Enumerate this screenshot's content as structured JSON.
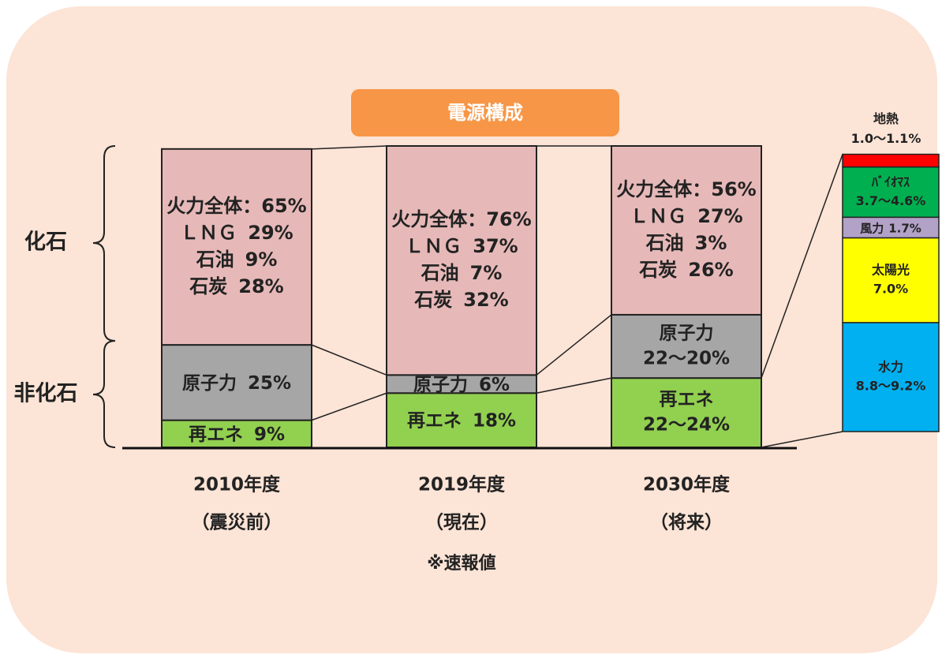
{
  "chart_data": {
    "type": "stacked_bar",
    "title": "電源構成",
    "categories": [
      "2010年度",
      "2019年度",
      "2030年度"
    ],
    "category_notes": [
      "（震災前）",
      "（現在）",
      "（将来）"
    ],
    "note": "※速報値",
    "group_labels": [
      "化石",
      "非化石"
    ],
    "ylim": [
      0,
      100
    ],
    "series": [
      {
        "name": "火力全体",
        "color": "#e6b9b8",
        "values": [
          65,
          76,
          56
        ],
        "value_labels": [
          "65%",
          "76%",
          "56%"
        ],
        "separator": "："
      },
      {
        "name": "原子力",
        "color": "#a6a6a6",
        "values": [
          25,
          6,
          21
        ],
        "value_labels": [
          "25%",
          "6%",
          "22～20%"
        ]
      },
      {
        "name": "再エネ",
        "color": "#92d050",
        "values": [
          9,
          18,
          23
        ],
        "value_labels": [
          "9%",
          "18%",
          "22～24%"
        ]
      }
    ],
    "fossil_breakdown": [
      {
        "name": "ＬＮＧ",
        "values": [
          29,
          37,
          27
        ],
        "value_labels": [
          "29%",
          "37%",
          "27%"
        ]
      },
      {
        "name": "石油",
        "values": [
          9,
          7,
          3
        ],
        "value_labels": [
          "9%",
          "7%",
          "3%"
        ]
      },
      {
        "name": "石炭",
        "values": [
          28,
          32,
          26
        ],
        "value_labels": [
          "28%",
          "32%",
          "26%"
        ]
      }
    ],
    "detail": {
      "categories": [
        "水力",
        "太陽光",
        "風力",
        "ﾊﾞｲｵﾏｽ",
        "地熱"
      ],
      "values": [
        9.0,
        7.0,
        1.7,
        4.15,
        1.05
      ],
      "value_labels": [
        "8.8～9.2%",
        "7.0%",
        "1.7%",
        "3.7～4.6%",
        "1.0～1.1%"
      ],
      "colors": [
        "#00b0f0",
        "#ffff00",
        "#b3a2c7",
        "#00b050",
        "#ff0000"
      ],
      "ylim": [
        0,
        23
      ]
    }
  }
}
